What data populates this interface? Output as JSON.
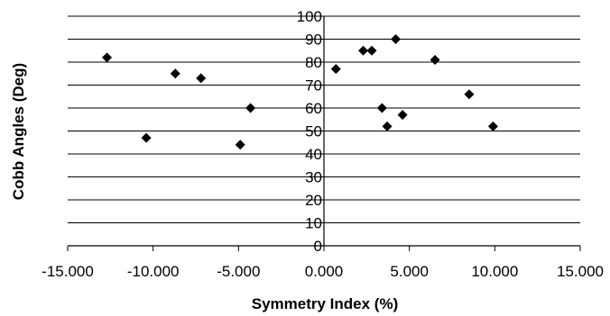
{
  "chart_data": {
    "type": "scatter",
    "xlabel": "Symmetry Index (%)",
    "ylabel": "Cobb Angles (Deg)",
    "xlim": [
      -15,
      15
    ],
    "ylim": [
      0,
      100
    ],
    "x_ticks": [
      "-15.000",
      "-10.000",
      "-5.000",
      "0.000",
      "5.000",
      "10.000",
      "15.000"
    ],
    "y_ticks": [
      "0",
      "10",
      "20",
      "30",
      "40",
      "50",
      "60",
      "70",
      "80",
      "90",
      "100"
    ],
    "grid": "horizontal",
    "marker": "diamond",
    "color": "#000000",
    "points": [
      {
        "x": -12.7,
        "y": 82
      },
      {
        "x": -10.4,
        "y": 47
      },
      {
        "x": -8.7,
        "y": 75
      },
      {
        "x": -7.2,
        "y": 73
      },
      {
        "x": -4.9,
        "y": 44
      },
      {
        "x": -4.3,
        "y": 60
      },
      {
        "x": 0.7,
        "y": 77
      },
      {
        "x": 2.3,
        "y": 85
      },
      {
        "x": 2.8,
        "y": 85
      },
      {
        "x": 3.4,
        "y": 60
      },
      {
        "x": 3.7,
        "y": 52
      },
      {
        "x": 4.2,
        "y": 90
      },
      {
        "x": 4.6,
        "y": 57
      },
      {
        "x": 6.5,
        "y": 81
      },
      {
        "x": 8.5,
        "y": 66
      },
      {
        "x": 9.9,
        "y": 52
      }
    ]
  }
}
